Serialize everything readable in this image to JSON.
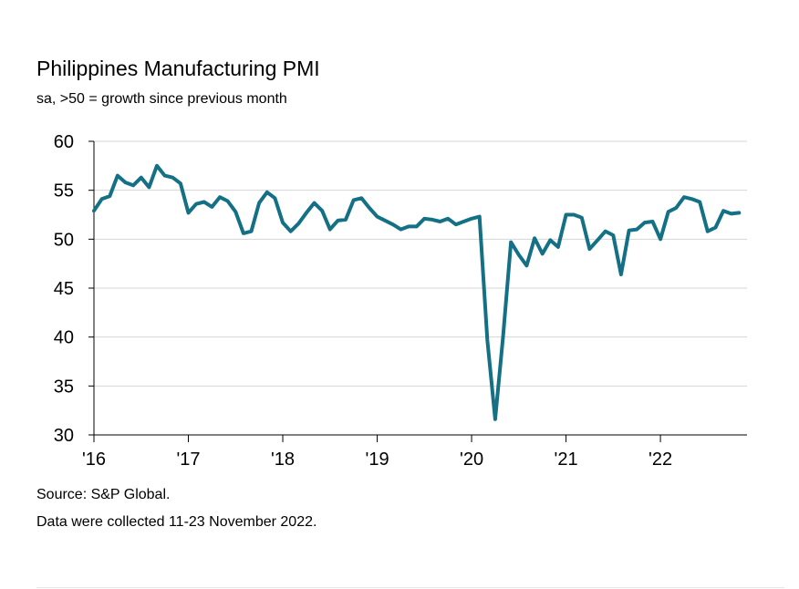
{
  "chart_data": {
    "type": "line",
    "title": "Philippines Manufacturing PMI",
    "subtitle": "sa, >50 = growth since previous month",
    "ylim": [
      30,
      60
    ],
    "yticks": [
      "60",
      "55",
      "50",
      "45",
      "40",
      "35",
      "30"
    ],
    "xlim": [
      2016,
      2022.917
    ],
    "xticks": [
      {
        "label": "'16",
        "value": 2016
      },
      {
        "label": "'17",
        "value": 2017
      },
      {
        "label": "'18",
        "value": 2018
      },
      {
        "label": "'19",
        "value": 2019
      },
      {
        "label": "'20",
        "value": 2020
      },
      {
        "label": "'21",
        "value": 2021
      },
      {
        "label": "'22",
        "value": 2022
      }
    ],
    "grid": true,
    "line_color": "#137085",
    "series": [
      {
        "x": [
          "2016-01",
          "2016-02",
          "2016-03",
          "2016-04",
          "2016-05",
          "2016-06",
          "2016-07",
          "2016-08",
          "2016-09",
          "2016-10",
          "2016-11",
          "2016-12",
          "2017-01",
          "2017-02",
          "2017-03",
          "2017-04",
          "2017-05",
          "2017-06",
          "2017-07",
          "2017-08",
          "2017-09",
          "2017-10",
          "2017-11",
          "2017-12",
          "2018-01",
          "2018-02",
          "2018-03",
          "2018-04",
          "2018-05",
          "2018-06",
          "2018-07",
          "2018-08",
          "2018-09",
          "2018-10",
          "2018-11",
          "2018-12",
          "2019-01",
          "2019-02",
          "2019-03",
          "2019-04",
          "2019-05",
          "2019-06",
          "2019-07",
          "2019-08",
          "2019-09",
          "2019-10",
          "2019-11",
          "2019-12",
          "2020-01",
          "2020-02",
          "2020-03",
          "2020-04",
          "2020-05",
          "2020-06",
          "2020-07",
          "2020-08",
          "2020-09",
          "2020-10",
          "2020-11",
          "2020-12",
          "2021-01",
          "2021-02",
          "2021-03",
          "2021-04",
          "2021-05",
          "2021-06",
          "2021-07",
          "2021-08",
          "2021-09",
          "2021-10",
          "2021-11",
          "2021-12",
          "2022-01",
          "2022-02",
          "2022-03",
          "2022-04",
          "2022-05",
          "2022-06",
          "2022-07",
          "2022-08",
          "2022-09",
          "2022-10",
          "2022-11"
        ],
        "values": [
          52.9,
          54.1,
          54.4,
          56.5,
          55.8,
          55.5,
          56.3,
          55.3,
          57.5,
          56.5,
          56.3,
          55.7,
          52.7,
          53.6,
          53.8,
          53.3,
          54.3,
          53.9,
          52.8,
          50.6,
          50.8,
          53.7,
          54.8,
          54.2,
          51.7,
          50.8,
          51.6,
          52.7,
          53.7,
          52.9,
          51.0,
          51.9,
          52.0,
          54.0,
          54.2,
          53.2,
          52.3,
          51.9,
          51.5,
          51.0,
          51.3,
          51.3,
          52.1,
          52.0,
          51.8,
          52.1,
          51.5,
          51.8,
          52.1,
          52.3,
          39.7,
          31.6,
          40.1,
          49.7,
          48.4,
          47.3,
          50.1,
          48.5,
          49.9,
          49.2,
          52.5,
          52.5,
          52.2,
          49.0,
          49.9,
          50.8,
          50.4,
          46.4,
          50.9,
          51.0,
          51.7,
          51.8,
          50.0,
          52.8,
          53.2,
          54.3,
          54.1,
          53.8,
          50.8,
          51.2,
          52.9,
          52.6,
          52.7
        ]
      }
    ],
    "source": "Source: S&P Global.",
    "note": "Data were collected 11-23 November 2022."
  }
}
